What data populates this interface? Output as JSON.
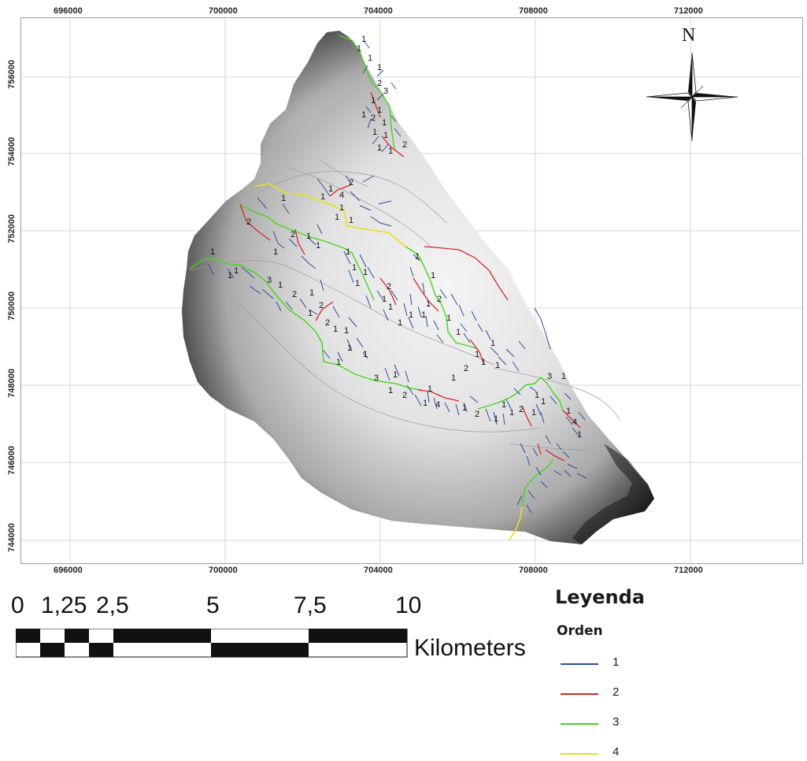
{
  "map": {
    "x_ticks": [
      "696000",
      "700000",
      "704000",
      "708000",
      "712000"
    ],
    "y_ticks": [
      "756000",
      "754000",
      "752000",
      "750000",
      "748000",
      "746000",
      "744000"
    ],
    "north_label": "N",
    "stream_labels": [
      "1",
      "1",
      "1",
      "1",
      "2",
      "3",
      "1",
      "1",
      "2",
      "1",
      "1",
      "1",
      "1",
      "2",
      "1",
      "1",
      "1",
      "4",
      "1",
      "2",
      "1",
      "1",
      "1",
      "2",
      "1",
      "2",
      "1",
      "1",
      "1",
      "1",
      "1",
      "1",
      "3",
      "1",
      "2",
      "1",
      "2",
      "1",
      "2",
      "1",
      "1",
      "1",
      "1",
      "1",
      "1",
      "1",
      "1",
      "1",
      "2",
      "1",
      "1",
      "1",
      "1",
      "1",
      "1",
      "1",
      "1",
      "2",
      "1",
      "1",
      "1",
      "1",
      "1",
      "1",
      "2",
      "1",
      "3",
      "1",
      "1",
      "2",
      "1",
      "1",
      "4",
      "1",
      "2",
      "1",
      "1",
      "1",
      "2",
      "1",
      "1",
      "3",
      "1",
      "1",
      "1",
      "4",
      "1"
    ]
  },
  "scale_bar": {
    "labels": [
      "0",
      "1,25",
      "2,5",
      "5",
      "7,5",
      "10"
    ],
    "unit": "Kilometers"
  },
  "legend": {
    "title": "Leyenda",
    "subtitle": "Orden",
    "entries": [
      {
        "label": "1",
        "color": "#2b4c9c"
      },
      {
        "label": "2",
        "color": "#d42a2a"
      },
      {
        "label": "3",
        "color": "#46d41e"
      },
      {
        "label": "4",
        "color": "#eadf18"
      }
    ]
  },
  "colors": {
    "order1": "#2b4c9c",
    "order2": "#d42a2a",
    "order3": "#46d41e",
    "order4": "#eadf18",
    "grid": "#d7d7d7",
    "subbasin": "#9a9a9a"
  }
}
